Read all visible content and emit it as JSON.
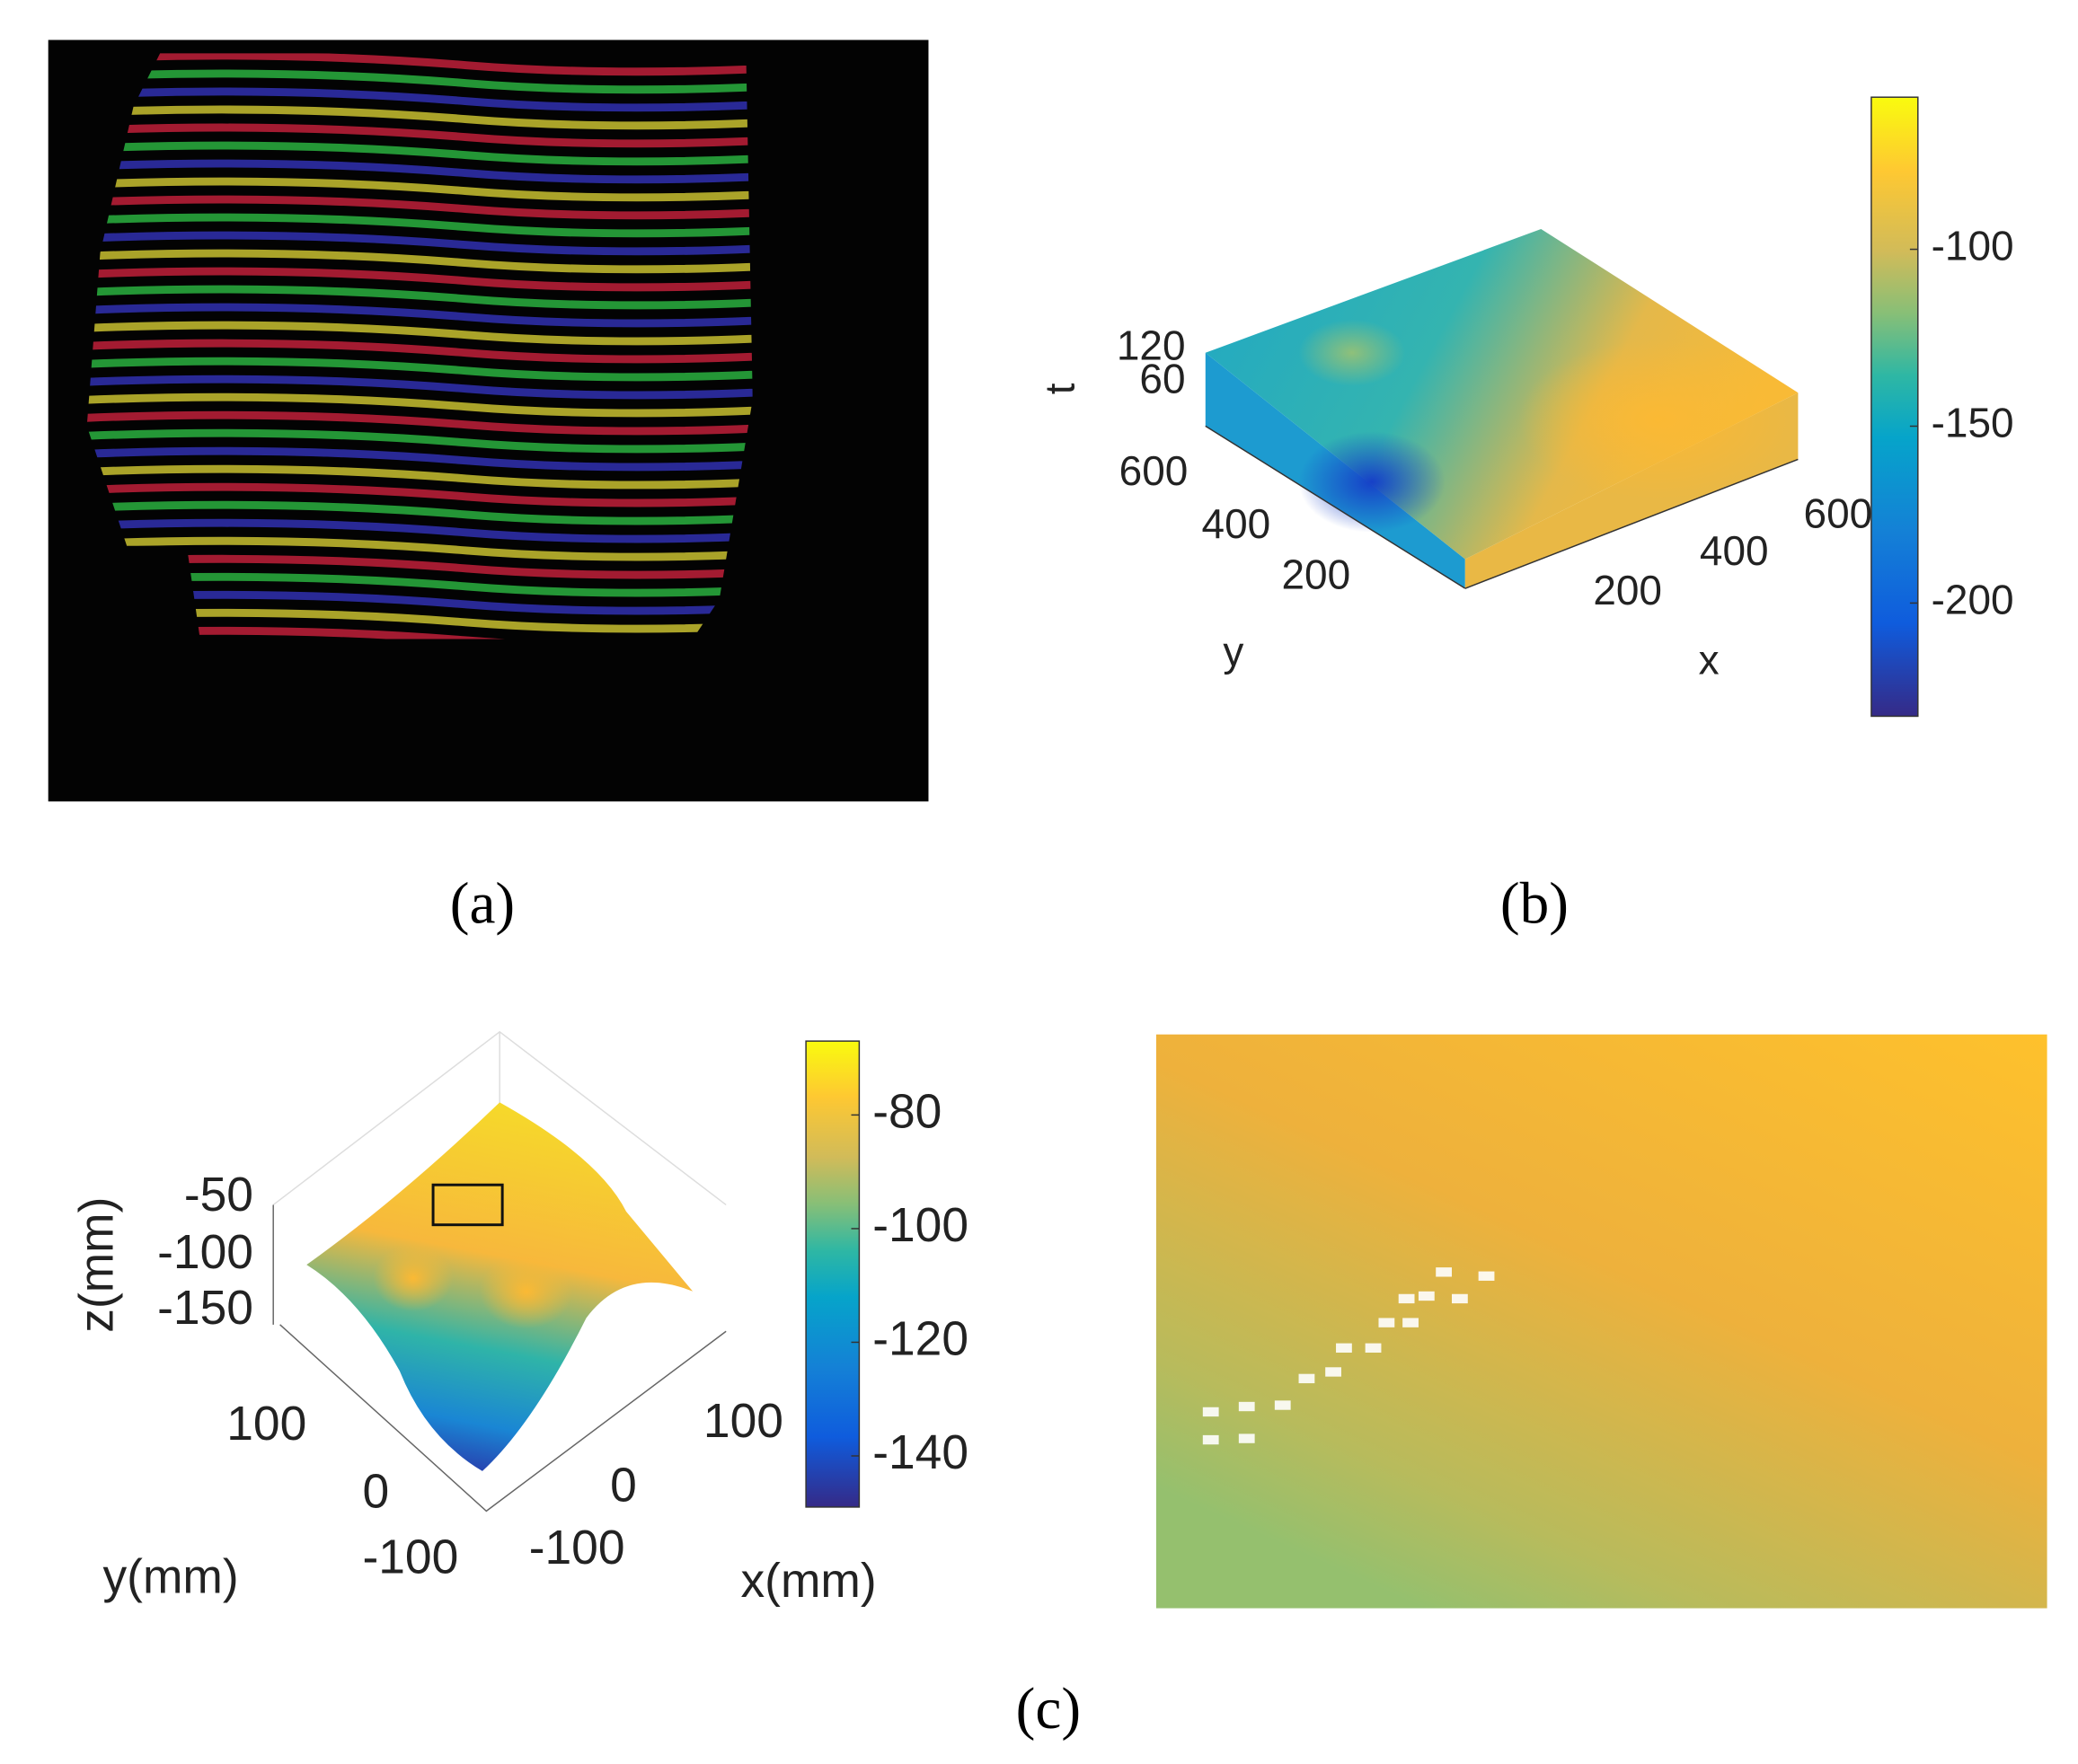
{
  "panels": {
    "a": {
      "caption": "(a)"
    },
    "b": {
      "caption": "(b)",
      "axes": {
        "t": {
          "label": "t",
          "ticks": [
            120,
            60
          ]
        },
        "y": {
          "label": "y",
          "ticks": [
            600,
            400,
            200
          ]
        },
        "x": {
          "label": "x",
          "ticks": [
            200,
            400,
            600
          ]
        }
      },
      "colorbar": {
        "clim": [
          -232,
          -57
        ],
        "ticks": [
          -100,
          -150,
          -200
        ]
      }
    },
    "c": {
      "caption": "(c)",
      "axes": {
        "z": {
          "label": "z(mm)",
          "ticks": [
            -50,
            -100,
            -150
          ]
        },
        "y": {
          "label": "y(mm)",
          "ticks": [
            100,
            0,
            -100
          ]
        },
        "x": {
          "label": "x(mm)",
          "ticks": [
            -100,
            0,
            100
          ]
        }
      },
      "colorbar": {
        "clim": [
          -149,
          -67
        ],
        "ticks": [
          -80,
          -100,
          -120,
          -140
        ]
      }
    }
  }
}
